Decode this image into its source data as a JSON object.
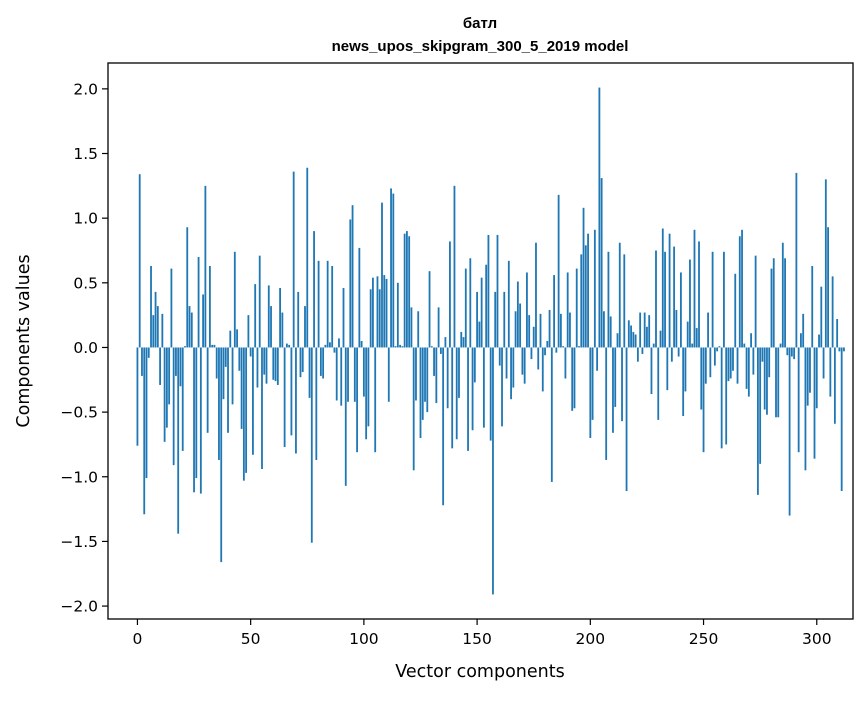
{
  "chart_data": {
    "type": "bar",
    "title": "батл\nnews_upos_skipgram_300_5_2019 model",
    "title_line1": "батл",
    "title_line2": "news_upos_skipgram_300_5_2019 model",
    "xlabel": "Vector components",
    "ylabel": "Components values",
    "xlim": [
      -13,
      316
    ],
    "ylim": [
      -2.1,
      2.2
    ],
    "xticks": [
      0,
      50,
      100,
      150,
      200,
      250,
      300
    ],
    "yticks": [
      -2.0,
      -1.5,
      -1.0,
      -0.5,
      0.0,
      0.5,
      1.0,
      1.5,
      2.0
    ],
    "ytick_labels": [
      "−2.0",
      "−1.5",
      "−1.0",
      "−0.5",
      "0.0",
      "0.5",
      "1.0",
      "1.5",
      "2.0"
    ],
    "bar_color": "#1f77b4",
    "grid": false,
    "values": [
      -0.76,
      1.34,
      -0.22,
      -1.29,
      -1.01,
      -0.08,
      0.63,
      0.25,
      0.43,
      0.32,
      -0.29,
      0.26,
      -0.73,
      -0.62,
      -0.44,
      0.61,
      -0.91,
      -0.22,
      -1.44,
      -0.3,
      -0.8,
      0.01,
      0.93,
      0.32,
      0.27,
      -1.12,
      -1.01,
      0.7,
      -1.13,
      0.41,
      1.25,
      -0.66,
      0.63,
      0.02,
      0.02,
      -0.24,
      -0.87,
      -1.66,
      -0.4,
      -0.15,
      -0.66,
      0.13,
      -0.44,
      0.74,
      0.14,
      -0.18,
      -0.63,
      -1.03,
      -0.97,
      0.25,
      -0.07,
      -0.83,
      0.49,
      -0.31,
      0.71,
      -0.94,
      -0.21,
      -0.28,
      0.48,
      0.32,
      -0.25,
      -0.26,
      -0.29,
      0.46,
      0.27,
      -0.77,
      0.03,
      0.02,
      -0.68,
      1.36,
      -0.82,
      0.43,
      -0.23,
      -0.19,
      0.32,
      1.39,
      -0.39,
      -1.51,
      0.9,
      -0.87,
      0.67,
      -0.22,
      -0.24,
      0.02,
      0.67,
      0.04,
      0.63,
      -0.04,
      -0.41,
      0.07,
      -0.45,
      0.46,
      -1.07,
      -0.42,
      0.99,
      1.1,
      -0.42,
      -0.81,
      0.77,
      0.05,
      -0.38,
      -0.71,
      -0.61,
      0.45,
      0.54,
      -0.81,
      0.55,
      0.45,
      1.12,
      0.56,
      0.53,
      -0.42,
      1.23,
      1.19,
      0.01,
      0.5,
      0.02,
      0.01,
      0.88,
      0.9,
      0.86,
      0.31,
      -0.95,
      -0.41,
      0.28,
      -0.7,
      -0.56,
      -0.42,
      -0.5,
      0.59,
      0.01,
      -0.22,
      -0.43,
      0.31,
      -0.05,
      -1.22,
      0.08,
      -0.47,
      0.82,
      -0.78,
      1.25,
      -0.71,
      -0.39,
      0.12,
      0.08,
      0.61,
      -0.8,
      0.69,
      -0.64,
      -0.27,
      0.43,
      0.2,
      0.54,
      -0.62,
      0.64,
      0.87,
      -0.72,
      -1.91,
      0.43,
      0.87,
      -0.14,
      -0.61,
      0.43,
      -0.24,
      0.67,
      -0.4,
      -0.31,
      0.28,
      0.51,
      0.34,
      -0.21,
      -0.28,
      0.58,
      0.25,
      -0.09,
      0.16,
      0.81,
      -0.17,
      0.26,
      -0.34,
      -0.06,
      0.05,
      0.29,
      -1.04,
      0.56,
      -0.04,
      1.18,
      0.26,
      0.01,
      -0.24,
      0.58,
      0.27,
      -0.49,
      -0.47,
      0.61,
      0.01,
      0.72,
      1.08,
      0.79,
      0.88,
      -0.7,
      -0.56,
      0.91,
      -0.18,
      2.01,
      1.31,
      0.28,
      -0.87,
      0.74,
      0.24,
      -0.66,
      -0.46,
      0.11,
      0.81,
      -0.57,
      0.72,
      -1.11,
      0.21,
      0.17,
      0.12,
      0.1,
      -0.11,
      0.27,
      -0.05,
      0.27,
      0.16,
      0.25,
      -0.36,
      0.03,
      0.75,
      -0.56,
      0.13,
      0.92,
      0.74,
      -0.33,
      0.88,
      -0.11,
      0.78,
      0.29,
      -0.07,
      0.58,
      -0.53,
      -0.34,
      0.2,
      0.68,
      0.03,
      0.91,
      0.15,
      0.82,
      -0.48,
      -0.81,
      -0.28,
      0.27,
      -0.23,
      0.74,
      -0.14,
      -0.03,
      0.01,
      -0.78,
      0.74,
      -0.75,
      -0.26,
      -0.24,
      -0.18,
      0.57,
      -0.28,
      0.86,
      0.91,
      0.03,
      -0.32,
      -0.38,
      0.11,
      -0.21,
      0.71,
      -1.14,
      -0.9,
      -0.11,
      -0.48,
      -0.52,
      -0.23,
      0.61,
      0.69,
      -0.54,
      -0.54,
      0.03,
      0.81,
      0.69,
      -0.06,
      -1.3,
      -0.07,
      -0.09,
      1.35,
      -0.81,
      0.11,
      0.26,
      -0.95,
      -0.45,
      -0.35,
      0.63,
      -0.86,
      -0.47,
      0.1,
      0.47,
      -0.24,
      1.3,
      0.93,
      -0.38,
      0.55,
      -0.59,
      0.22,
      -0.03,
      -1.11,
      -0.03
    ]
  }
}
